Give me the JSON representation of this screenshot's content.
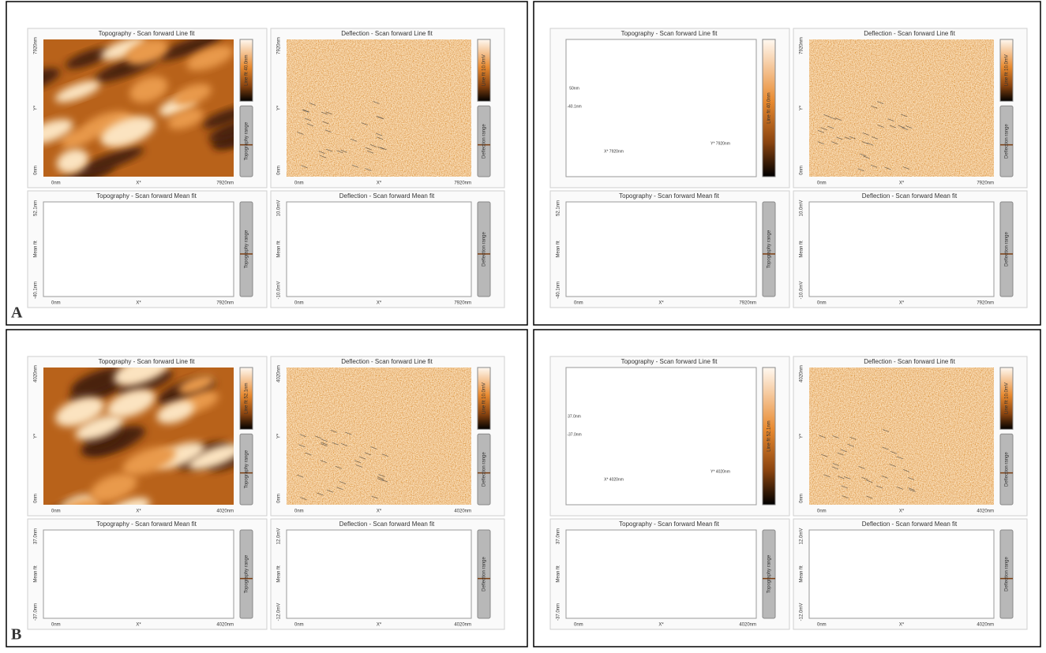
{
  "figure": {
    "quadrants": [
      {
        "label": "A",
        "panels": [
          {
            "kind": "topo-image",
            "title": "Topography - Scan forward   Line fit",
            "y_labels": [
              "7920nm",
              "Y*",
              "0nm"
            ],
            "x_labels": [
              "0nm",
              "X*",
              "7920nm"
            ],
            "scale": "Line fit 40.0nm",
            "range": "Topography range"
          },
          {
            "kind": "deflection-image",
            "title": "Deflection - Scan forward   Line fit",
            "y_labels": [
              "7920nm",
              "Y*",
              "0nm"
            ],
            "x_labels": [
              "0nm",
              "X*",
              "7920nm"
            ],
            "scale": "Line fit 10.0mV",
            "range": "Deflection range"
          },
          {
            "kind": "topo-profile",
            "title": "Topography - Scan forward   Mean fit",
            "y_labels": [
              "52.1nm",
              "Mean fit",
              "-40.1nm"
            ],
            "x_labels": [
              "0nm",
              "X*",
              "7920nm"
            ],
            "range": "Topography range"
          },
          {
            "kind": "deflection-profile",
            "title": "Deflection - Scan forward   Mean fit",
            "y_labels": [
              "10.0mV",
              "Mean fit",
              "-10.0mV"
            ],
            "x_labels": [
              "0nm",
              "X*",
              "7920nm"
            ],
            "range": "Deflection range"
          }
        ]
      },
      {
        "panels": [
          {
            "kind": "3d-view",
            "title": "Topography - Scan forward   Line fit",
            "axis_labels": [
              "50nm",
              "-40.1nm",
              "X* 7920nm",
              "Y* 7920nm"
            ],
            "scale": "Line fit 40.0nm"
          },
          {
            "kind": "deflection-image",
            "title": "Deflection - Scan forward   Line fit",
            "y_labels": [
              "7920nm",
              "Y*",
              "0nm"
            ],
            "x_labels": [
              "0nm",
              "X*",
              "7920nm"
            ],
            "scale": "Line fit 10.0mV",
            "range": "Deflection range"
          },
          {
            "kind": "topo-profile",
            "title": "Topography - Scan forward   Mean fit",
            "y_labels": [
              "52.1nm",
              "Mean fit",
              "-40.1nm"
            ],
            "x_labels": [
              "0nm",
              "X*",
              "7920nm"
            ],
            "range": "Topography range"
          },
          {
            "kind": "deflection-profile",
            "title": "Deflection - Scan forward   Mean fit",
            "y_labels": [
              "10.0mV",
              "Mean fit",
              "-10.0mV"
            ],
            "x_labels": [
              "0nm",
              "X*",
              "7920nm"
            ],
            "range": "Deflection range"
          }
        ]
      },
      {
        "label": "B",
        "panels": [
          {
            "kind": "topo-image",
            "title": "Topography - Scan forward   Line fit",
            "y_labels": [
              "4020nm",
              "Y*",
              "0nm"
            ],
            "x_labels": [
              "0nm",
              "X*",
              "4020nm"
            ],
            "scale": "Line fit 52.1nm",
            "range": "Topography range"
          },
          {
            "kind": "deflection-image",
            "title": "Deflection - Scan forward   Line fit",
            "y_labels": [
              "4020nm",
              "Y*",
              "0nm"
            ],
            "x_labels": [
              "0nm",
              "X*",
              "4020nm"
            ],
            "scale": "Line fit 10.0mV",
            "range": "Deflection range"
          },
          {
            "kind": "topo-profile",
            "title": "Topography - Scan forward   Mean fit",
            "y_labels": [
              "37.0nm",
              "Mean fit",
              "-37.0nm"
            ],
            "x_labels": [
              "0nm",
              "X*",
              "4020nm"
            ],
            "range": "Topography range"
          },
          {
            "kind": "deflection-profile",
            "title": "Deflection - Scan forward   Mean fit",
            "y_labels": [
              "12.0mV",
              "Mean fit",
              "-12.0mV"
            ],
            "x_labels": [
              "0nm",
              "X*",
              "4020nm"
            ],
            "range": "Deflection range"
          }
        ]
      },
      {
        "panels": [
          {
            "kind": "3d-view",
            "title": "Topography - Scan forward   Line fit",
            "axis_labels": [
              "37.0nm",
              "-37.0nm",
              "X* 4020nm",
              "Y* 4020nm"
            ],
            "scale": "Line fit 52.1nm"
          },
          {
            "kind": "deflection-image",
            "title": "Deflection - Scan forward   Line fit",
            "y_labels": [
              "4020nm",
              "Y*",
              "0nm"
            ],
            "x_labels": [
              "0nm",
              "X*",
              "4020nm"
            ],
            "scale": "Line fit 10.0mV",
            "range": "Deflection range"
          },
          {
            "kind": "topo-profile",
            "title": "Topography - Scan forward   Mean fit",
            "y_labels": [
              "37.0nm",
              "Mean fit",
              "-37.0nm"
            ],
            "x_labels": [
              "0nm",
              "X*",
              "4020nm"
            ],
            "range": "Topography range"
          },
          {
            "kind": "deflection-profile",
            "title": "Deflection - Scan forward   Mean fit",
            "y_labels": [
              "12.0mV",
              "Mean fit",
              "-12.0mV"
            ],
            "x_labels": [
              "0nm",
              "X*",
              "4020nm"
            ],
            "range": "Deflection range"
          }
        ]
      }
    ]
  }
}
